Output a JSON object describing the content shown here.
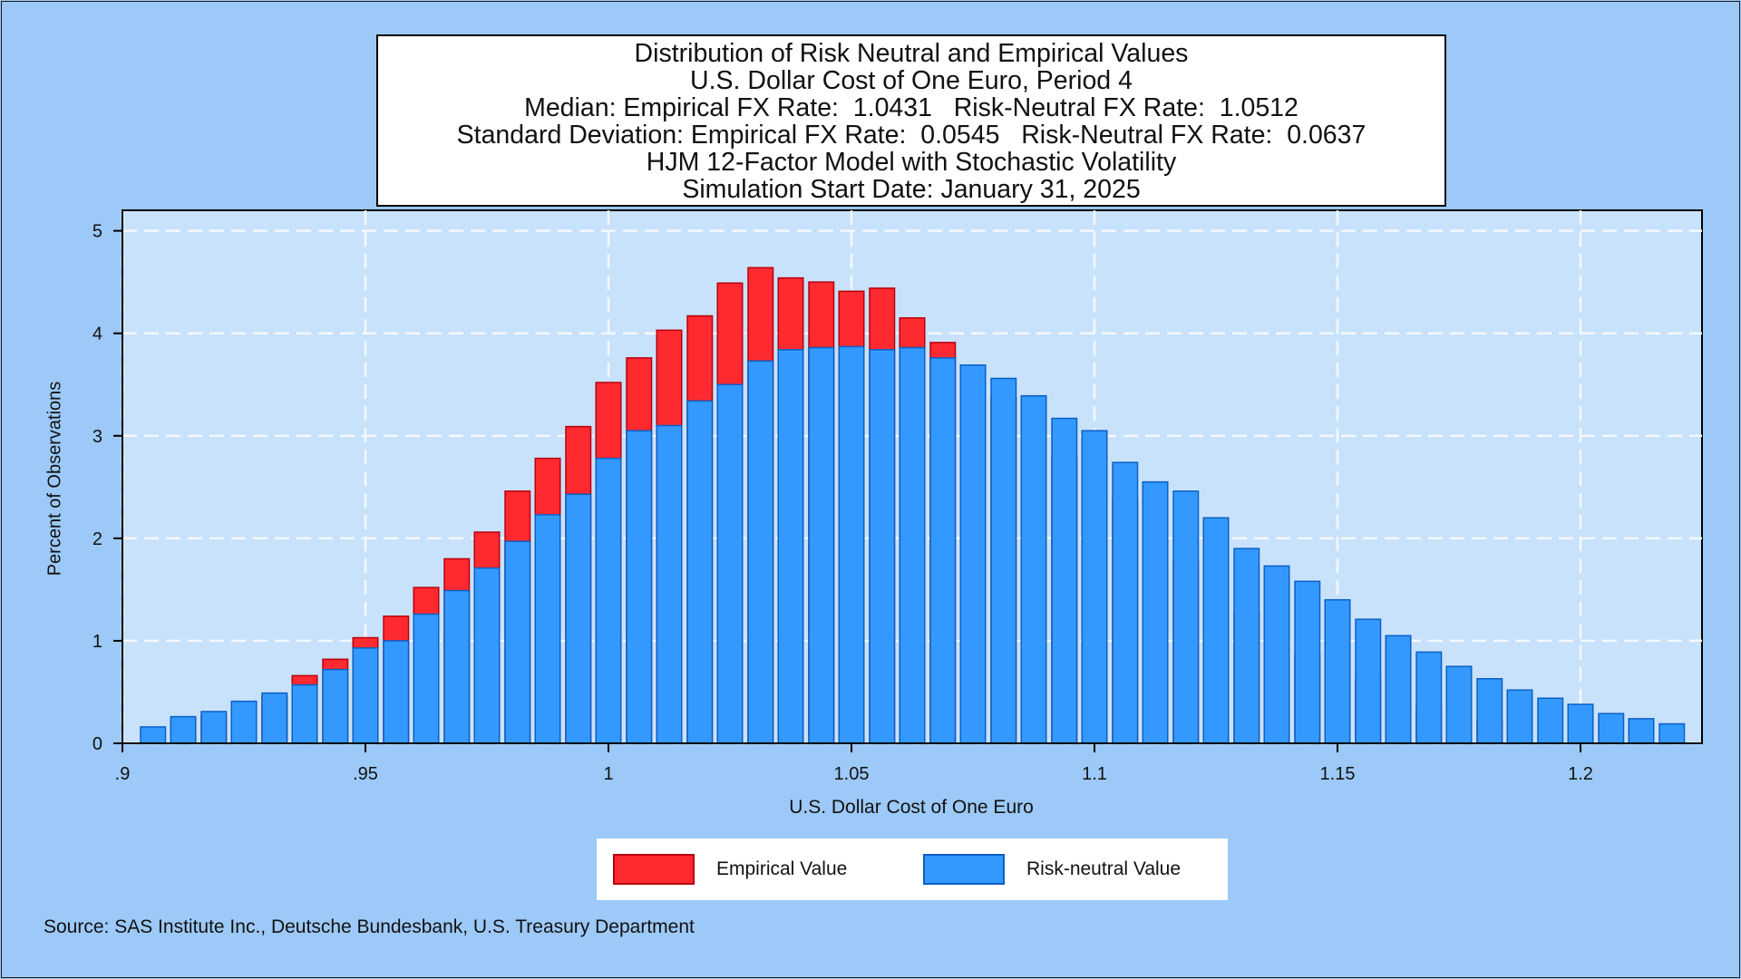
{
  "title_lines": [
    "Distribution of Risk Neutral and Empirical Values",
    "U.S. Dollar Cost of One Euro, Period 4",
    "Median: Empirical FX Rate:  1.0431   Risk-Neutral FX Rate:  1.0512",
    "Standard Deviation: Empirical FX Rate:  0.0545   Risk-Neutral FX Rate:  0.0637",
    "HJM 12-Factor Model with Stochastic Volatility",
    "Simulation Start Date: January 31, 2025"
  ],
  "source_note": "Source: SAS Institute Inc., Deutsche Bundesbank, U.S. Treasury Department",
  "colors": {
    "background": "#9cc9f7",
    "plot_area": "#c9e2fb",
    "empirical_fill": "#ff2a2f",
    "empirical_border": "#b8000d",
    "risk_neutral_fill": "#3399ff",
    "risk_neutral_border": "#0b5fc4"
  },
  "chart_data": {
    "type": "bar",
    "xlabel": "U.S. Dollar Cost of One Euro",
    "ylabel": "Percent of Observations",
    "xlim": [
      0.9,
      1.225
    ],
    "ylim": [
      0,
      5.2
    ],
    "x_ticks": [
      0.9,
      0.95,
      1.0,
      1.05,
      1.1,
      1.15,
      1.2
    ],
    "x_tick_labels": [
      ".9",
      ".95",
      "1",
      "1.05",
      "1.1",
      "1.15",
      "1.2"
    ],
    "y_ticks": [
      0,
      1,
      2,
      3,
      4,
      5
    ],
    "y_tick_labels": [
      "0",
      "1",
      "2",
      "3",
      "4",
      "5"
    ],
    "grid": true,
    "legend_position": "bottom",
    "series": [
      {
        "name": "Empirical Value",
        "x": [
          0.9125,
          0.9188,
          0.925,
          0.9313,
          0.9375,
          0.9438,
          0.95,
          0.9563,
          0.9625,
          0.9688,
          0.975,
          0.9813,
          0.9875,
          0.9938,
          1.0,
          1.0063,
          1.0125,
          1.0188,
          1.025,
          1.0313,
          1.0375,
          1.0438,
          1.05,
          1.0563,
          1.0625,
          1.0688,
          1.075,
          1.0813,
          1.0875,
          1.0938,
          1.1,
          1.1063,
          1.1125,
          1.1188,
          1.125,
          1.1313,
          1.1375,
          1.1438,
          1.15,
          1.1563,
          1.1625,
          1.1688,
          1.175,
          1.1813,
          1.1875
        ],
        "values": [
          0.2,
          0.27,
          0.36,
          0.46,
          0.66,
          0.82,
          1.03,
          1.24,
          1.52,
          1.8,
          2.06,
          2.46,
          2.78,
          3.09,
          3.52,
          3.76,
          4.03,
          4.17,
          4.49,
          4.64,
          4.54,
          4.5,
          4.41,
          4.44,
          4.15,
          3.91,
          3.69,
          3.37,
          3.11,
          2.79,
          2.62,
          2.37,
          2.02,
          1.77,
          1.51,
          1.27,
          1.08,
          0.87,
          0.73,
          0.63,
          0.47,
          0.36,
          0.28,
          0.22,
          0.17
        ]
      },
      {
        "name": "Risk-neutral Value",
        "x": [
          0.9063,
          0.9125,
          0.9188,
          0.925,
          0.9313,
          0.9375,
          0.9438,
          0.95,
          0.9563,
          0.9625,
          0.9688,
          0.975,
          0.9813,
          0.9875,
          0.9938,
          1.0,
          1.0063,
          1.0125,
          1.0188,
          1.025,
          1.0313,
          1.0375,
          1.0438,
          1.05,
          1.0563,
          1.0625,
          1.0688,
          1.075,
          1.0813,
          1.0875,
          1.0938,
          1.1,
          1.1063,
          1.1125,
          1.1188,
          1.125,
          1.1313,
          1.1375,
          1.1438,
          1.15,
          1.1563,
          1.1625,
          1.1688,
          1.175,
          1.1813,
          1.1875,
          1.1938,
          1.2,
          1.2063,
          1.2125,
          1.2188
        ],
        "values": [
          0.16,
          0.26,
          0.31,
          0.41,
          0.49,
          0.57,
          0.72,
          0.93,
          1.0,
          1.26,
          1.49,
          1.71,
          1.97,
          2.23,
          2.43,
          2.78,
          3.05,
          3.1,
          3.34,
          3.5,
          3.73,
          3.84,
          3.86,
          3.87,
          3.84,
          3.86,
          3.76,
          3.69,
          3.56,
          3.39,
          3.17,
          3.05,
          2.74,
          2.55,
          2.46,
          2.2,
          1.9,
          1.73,
          1.58,
          1.4,
          1.21,
          1.05,
          0.89,
          0.75,
          0.63,
          0.52,
          0.44,
          0.38,
          0.29,
          0.24,
          0.19
        ]
      }
    ]
  }
}
